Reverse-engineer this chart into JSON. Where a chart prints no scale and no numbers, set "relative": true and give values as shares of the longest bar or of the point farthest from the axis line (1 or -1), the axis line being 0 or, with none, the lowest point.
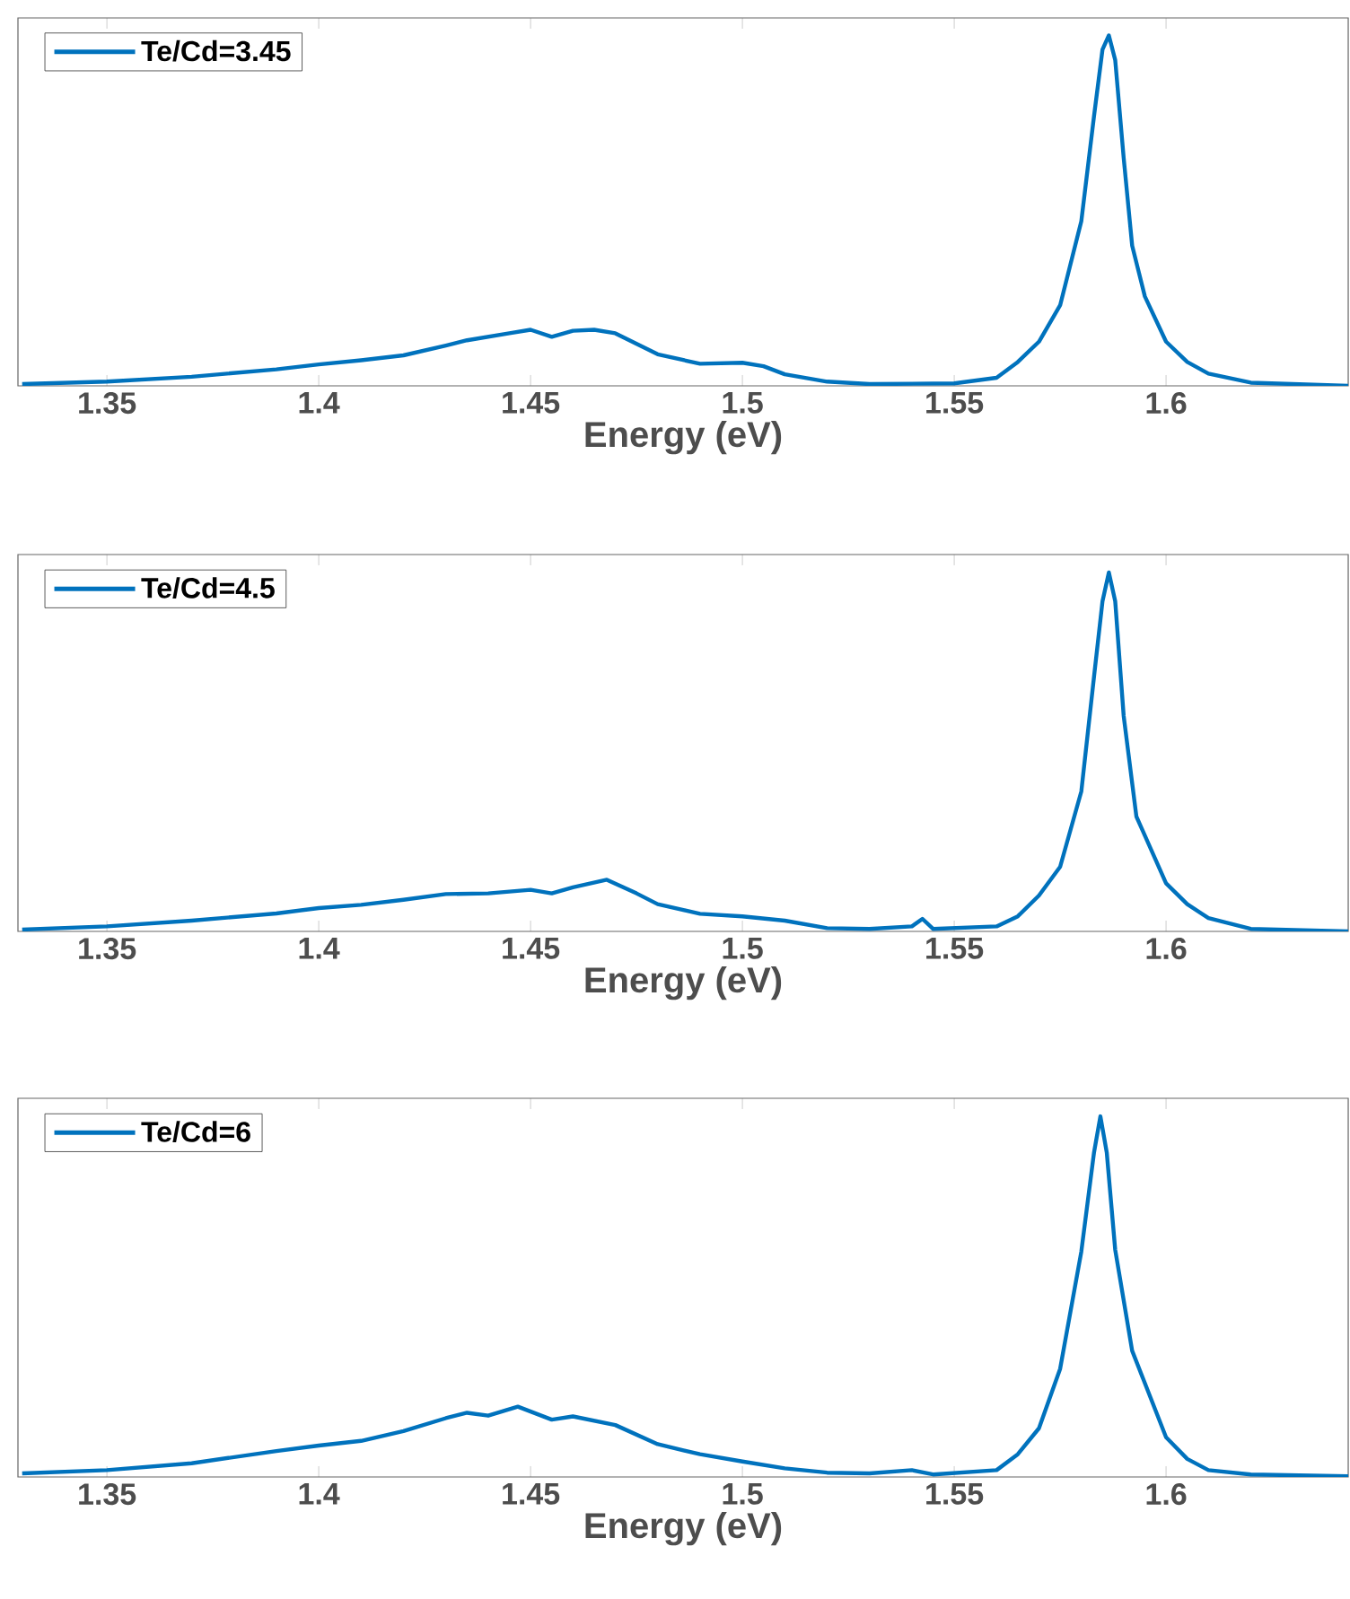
{
  "chart_data": [
    {
      "type": "line",
      "xlabel": "Energy (eV)",
      "relative": true,
      "legend": "top left",
      "grid": false,
      "xlim": [
        1.329,
        1.643
      ],
      "xticks": [
        1.35,
        1.4,
        1.45,
        1.5,
        1.55,
        1.6
      ],
      "x": [
        1.33,
        1.35,
        1.37,
        1.39,
        1.4,
        1.41,
        1.42,
        1.43,
        1.435,
        1.445,
        1.45,
        1.455,
        1.46,
        1.465,
        1.47,
        1.475,
        1.48,
        1.49,
        1.5,
        1.505,
        1.51,
        1.52,
        1.53,
        1.55,
        1.56,
        1.565,
        1.57,
        1.575,
        1.58,
        1.583,
        1.585,
        1.5865,
        1.588,
        1.59,
        1.592,
        1.595,
        1.6,
        1.605,
        1.61,
        1.62,
        1.643
      ],
      "series": [
        {
          "name": "Te/Cd=3.45",
          "color": "#0072bd",
          "values": [
            0.005,
            0.012,
            0.026,
            0.047,
            0.061,
            0.073,
            0.087,
            0.115,
            0.13,
            0.15,
            0.16,
            0.14,
            0.157,
            0.16,
            0.15,
            0.12,
            0.09,
            0.063,
            0.066,
            0.056,
            0.033,
            0.012,
            0.005,
            0.007,
            0.023,
            0.068,
            0.126,
            0.23,
            0.47,
            0.77,
            0.96,
            1.0,
            0.93,
            0.65,
            0.4,
            0.255,
            0.126,
            0.068,
            0.035,
            0.009,
            0.0
          ]
        }
      ]
    },
    {
      "type": "line",
      "xlabel": "Energy (eV)",
      "relative": true,
      "legend": "top left",
      "grid": false,
      "xlim": [
        1.329,
        1.643
      ],
      "xticks": [
        1.35,
        1.4,
        1.45,
        1.5,
        1.55,
        1.6
      ],
      "x": [
        1.33,
        1.35,
        1.37,
        1.39,
        1.4,
        1.41,
        1.42,
        1.43,
        1.44,
        1.45,
        1.455,
        1.46,
        1.468,
        1.475,
        1.48,
        1.49,
        1.5,
        1.51,
        1.52,
        1.53,
        1.54,
        1.5425,
        1.545,
        1.56,
        1.565,
        1.57,
        1.575,
        1.58,
        1.583,
        1.585,
        1.5865,
        1.588,
        1.59,
        1.593,
        1.6,
        1.605,
        1.61,
        1.62,
        1.643
      ],
      "series": [
        {
          "name": "Te/Cd=4.5",
          "color": "#0072bd",
          "values": [
            0.005,
            0.014,
            0.03,
            0.05,
            0.065,
            0.074,
            0.088,
            0.104,
            0.106,
            0.116,
            0.106,
            0.123,
            0.144,
            0.106,
            0.076,
            0.049,
            0.042,
            0.03,
            0.009,
            0.007,
            0.014,
            0.035,
            0.007,
            0.014,
            0.042,
            0.1,
            0.18,
            0.39,
            0.71,
            0.92,
            1.0,
            0.92,
            0.6,
            0.32,
            0.134,
            0.076,
            0.037,
            0.007,
            0.0
          ]
        }
      ]
    },
    {
      "type": "line",
      "xlabel": "Energy (eV)",
      "relative": true,
      "legend": "top left",
      "grid": false,
      "xlim": [
        1.329,
        1.643
      ],
      "xticks": [
        1.35,
        1.4,
        1.45,
        1.5,
        1.55,
        1.6
      ],
      "x": [
        1.33,
        1.35,
        1.37,
        1.39,
        1.4,
        1.41,
        1.42,
        1.43,
        1.435,
        1.44,
        1.447,
        1.455,
        1.46,
        1.47,
        1.48,
        1.49,
        1.5,
        1.51,
        1.52,
        1.53,
        1.54,
        1.545,
        1.56,
        1.565,
        1.57,
        1.575,
        1.58,
        1.583,
        1.5845,
        1.586,
        1.588,
        1.592,
        1.6,
        1.605,
        1.61,
        1.62,
        1.643
      ],
      "series": [
        {
          "name": "Te/Cd=6",
          "color": "#0072bd",
          "values": [
            0.01,
            0.019,
            0.038,
            0.072,
            0.087,
            0.1,
            0.127,
            0.163,
            0.178,
            0.17,
            0.195,
            0.159,
            0.168,
            0.144,
            0.091,
            0.063,
            0.043,
            0.024,
            0.012,
            0.01,
            0.019,
            0.007,
            0.019,
            0.063,
            0.135,
            0.3,
            0.625,
            0.9,
            1.0,
            0.9,
            0.63,
            0.35,
            0.11,
            0.05,
            0.019,
            0.007,
            0.002
          ]
        }
      ]
    }
  ]
}
